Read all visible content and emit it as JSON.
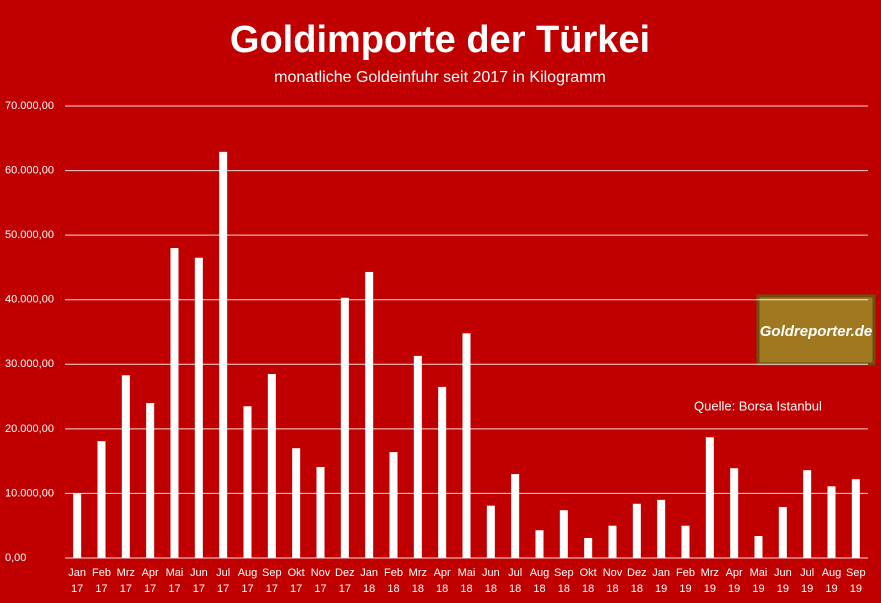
{
  "chart_data": {
    "type": "bar",
    "title": "Goldimporte der Türkei",
    "subtitle": "monatliche Goldeinfuhr seit 2017 in Kilogramm",
    "source": "Quelle: Borsa Istanbul",
    "logo": "Goldreporter.de",
    "categories": [
      "Jan 17",
      "Feb 17",
      "Mrz 17",
      "Apr 17",
      "Mai 17",
      "Jun 17",
      "Jul 17",
      "Aug 17",
      "Sep 17",
      "Okt 17",
      "Nov 17",
      "Dez 17",
      "Jan 18",
      "Feb 18",
      "Mrz 18",
      "Apr 18",
      "Mai 18",
      "Jun 18",
      "Jul 18",
      "Aug 18",
      "Sep 18",
      "Okt 18",
      "Nov 18",
      "Dez 18",
      "Jan 19",
      "Feb 19",
      "Mrz 19",
      "Apr 19",
      "Mai 19",
      "Jun 19",
      "Jul 19",
      "Aug 19",
      "Sep 19"
    ],
    "values": [
      10000,
      18100,
      28300,
      24000,
      48000,
      46500,
      62900,
      23500,
      28500,
      17000,
      14100,
      40300,
      44300,
      16400,
      31300,
      26500,
      34800,
      8100,
      13000,
      4300,
      7400,
      3100,
      5000,
      8400,
      9000,
      5000,
      18700,
      13900,
      3400,
      7900,
      13600,
      11100,
      12200
    ],
    "color": "#ffffff",
    "ylim": [
      0,
      70000
    ],
    "yticks": [
      {
        "value": 0,
        "label": "0,00"
      },
      {
        "value": 10000,
        "label": "10.000,00"
      },
      {
        "value": 20000,
        "label": "20.000,00"
      },
      {
        "value": 30000,
        "label": "30.000,00"
      },
      {
        "value": 40000,
        "label": "40.000,00"
      },
      {
        "value": 50000,
        "label": "50.000,00"
      },
      {
        "value": 60000,
        "label": "60.000,00"
      },
      {
        "value": 70000,
        "label": "70.000,00"
      }
    ],
    "grid": true
  }
}
